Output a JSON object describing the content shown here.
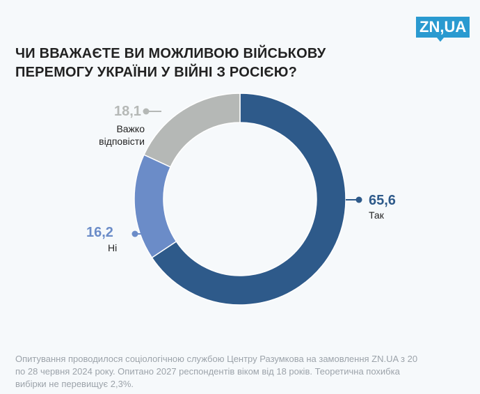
{
  "logo": "ZN,UA",
  "title": "ЧИ ВВАЖАЄТЕ ВИ МОЖЛИВОЮ ВІЙСЬКОВУ ПЕРЕМОГУ УКРАЇНИ У ВІЙНІ З РОСІЄЮ?",
  "chart_data": {
    "type": "pie",
    "donut": true,
    "slices": [
      {
        "label": "Так",
        "value": 65.6,
        "value_text": "65,6",
        "color": "#2e5a8a"
      },
      {
        "label": "Ні",
        "value": 16.2,
        "value_text": "16,2",
        "color": "#6b8cc8"
      },
      {
        "label": "Важко відповісти",
        "value": 18.1,
        "value_text": "18,1",
        "color": "#b5b8b6"
      }
    ]
  },
  "footnote": "Опитування проводилося  соціологічною службою Центру Разумкова на замовлення ZN.UA з 20 по 28 червня 2024 року. Опитано 2027 респондентів віком від 18 років. Теоретична похибка вибірки не перевищує 2,3%."
}
